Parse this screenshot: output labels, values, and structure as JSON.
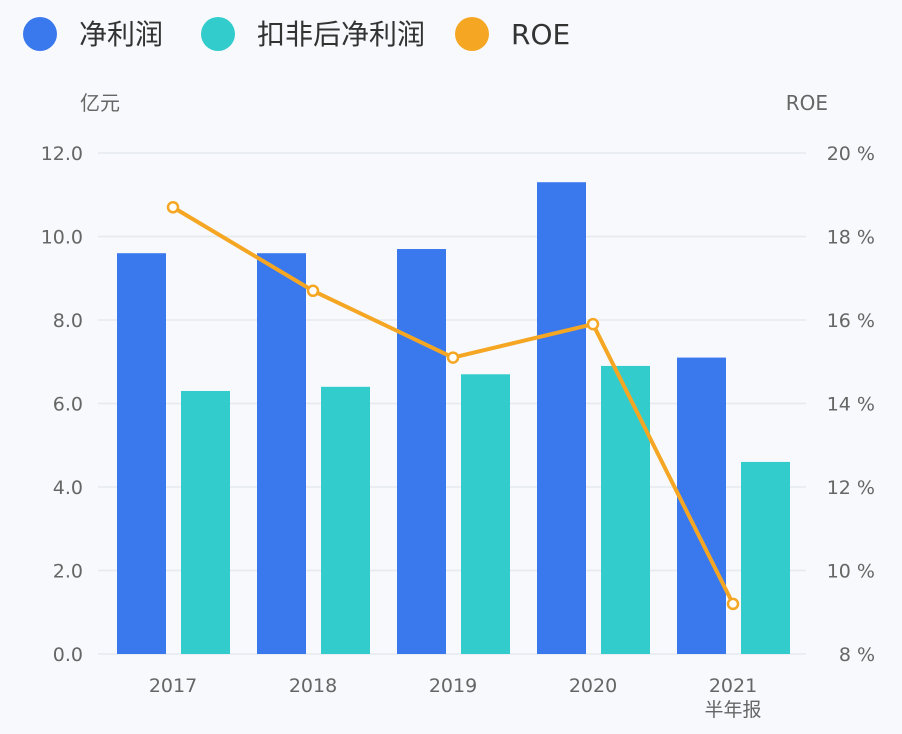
{
  "chart_data": {
    "type": "bar",
    "categories": [
      "2017",
      "2018",
      "2019",
      "2020",
      "2021\n半年报"
    ],
    "series": [
      {
        "name": "净利润",
        "type": "bar",
        "axis": "left",
        "color": "#3a78ee",
        "values": [
          9.6,
          9.6,
          9.7,
          11.3,
          7.1
        ]
      },
      {
        "name": "扣非后净利润",
        "type": "bar",
        "axis": "left",
        "color": "#33cccc",
        "values": [
          6.3,
          6.4,
          6.7,
          6.9,
          4.6
        ]
      },
      {
        "name": "ROE",
        "type": "line",
        "axis": "right",
        "color": "#f5a623",
        "values": [
          18.7,
          16.7,
          15.1,
          15.9,
          9.2
        ]
      }
    ],
    "left_axis": {
      "unit": "亿元",
      "ylim": [
        0,
        12
      ],
      "ticks": [
        "0.0",
        "2.0",
        "4.0",
        "6.0",
        "8.0",
        "10.0",
        "12.0"
      ]
    },
    "right_axis": {
      "unit": "ROE",
      "ylim": [
        8,
        20
      ],
      "ticks": [
        "8 %",
        "10 %",
        "12 %",
        "14 %",
        "16 %",
        "18 %",
        "20 %"
      ]
    },
    "grid": true,
    "legend": "top-left"
  }
}
